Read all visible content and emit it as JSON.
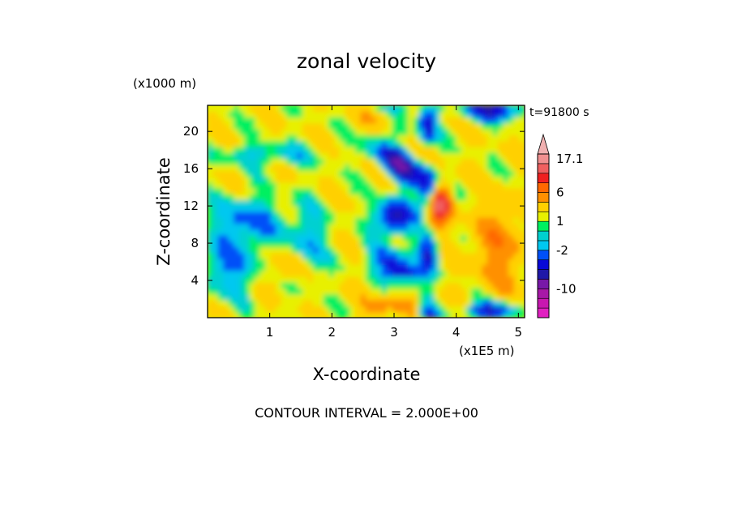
{
  "chart_data": {
    "type": "heatmap",
    "title": "zonal velocity",
    "xlabel": "X-coordinate",
    "ylabel": "Z-coordinate",
    "x_unit": "(x1E5 m)",
    "y_unit": "(x1000 m)",
    "time_label": "t=91800 s",
    "footer": "CONTOUR INTERVAL = 2.000E+00",
    "xlim": [
      0,
      5.1
    ],
    "ylim": [
      0,
      22.8
    ],
    "x_ticks": [
      1,
      2,
      3,
      4,
      5
    ],
    "y_ticks": [
      4,
      8,
      12,
      16,
      20
    ],
    "x_tick_labels": [
      "1",
      "2",
      "3",
      "4",
      "5"
    ],
    "y_tick_labels": [
      "4",
      "8",
      "12",
      "16",
      "20"
    ],
    "colorbar": {
      "levels": [
        -16,
        -14,
        -12,
        -10,
        -8,
        -6,
        -4,
        -2,
        -1,
        0,
        1,
        2,
        4,
        6,
        8,
        10,
        12,
        14,
        17.1
      ],
      "colors": [
        "#e020c0",
        "#c818b0",
        "#a818a8",
        "#7818a8",
        "#2018a8",
        "#0808d8",
        "#0050f8",
        "#00c8f0",
        "#00d0d0",
        "#00f060",
        "#e8f000",
        "#ffd000",
        "#ff9000",
        "#ff6800",
        "#f02020",
        "#f06060",
        "#f09090",
        "#f0b0b0"
      ],
      "labels": [
        {
          "text": "17.1",
          "value": 17.1
        },
        {
          "text": "6",
          "value": 6
        },
        {
          "text": "1",
          "value": 1
        },
        {
          "text": "-2",
          "value": -2
        },
        {
          "text": "-10",
          "value": -10
        }
      ]
    },
    "grid": false
  }
}
